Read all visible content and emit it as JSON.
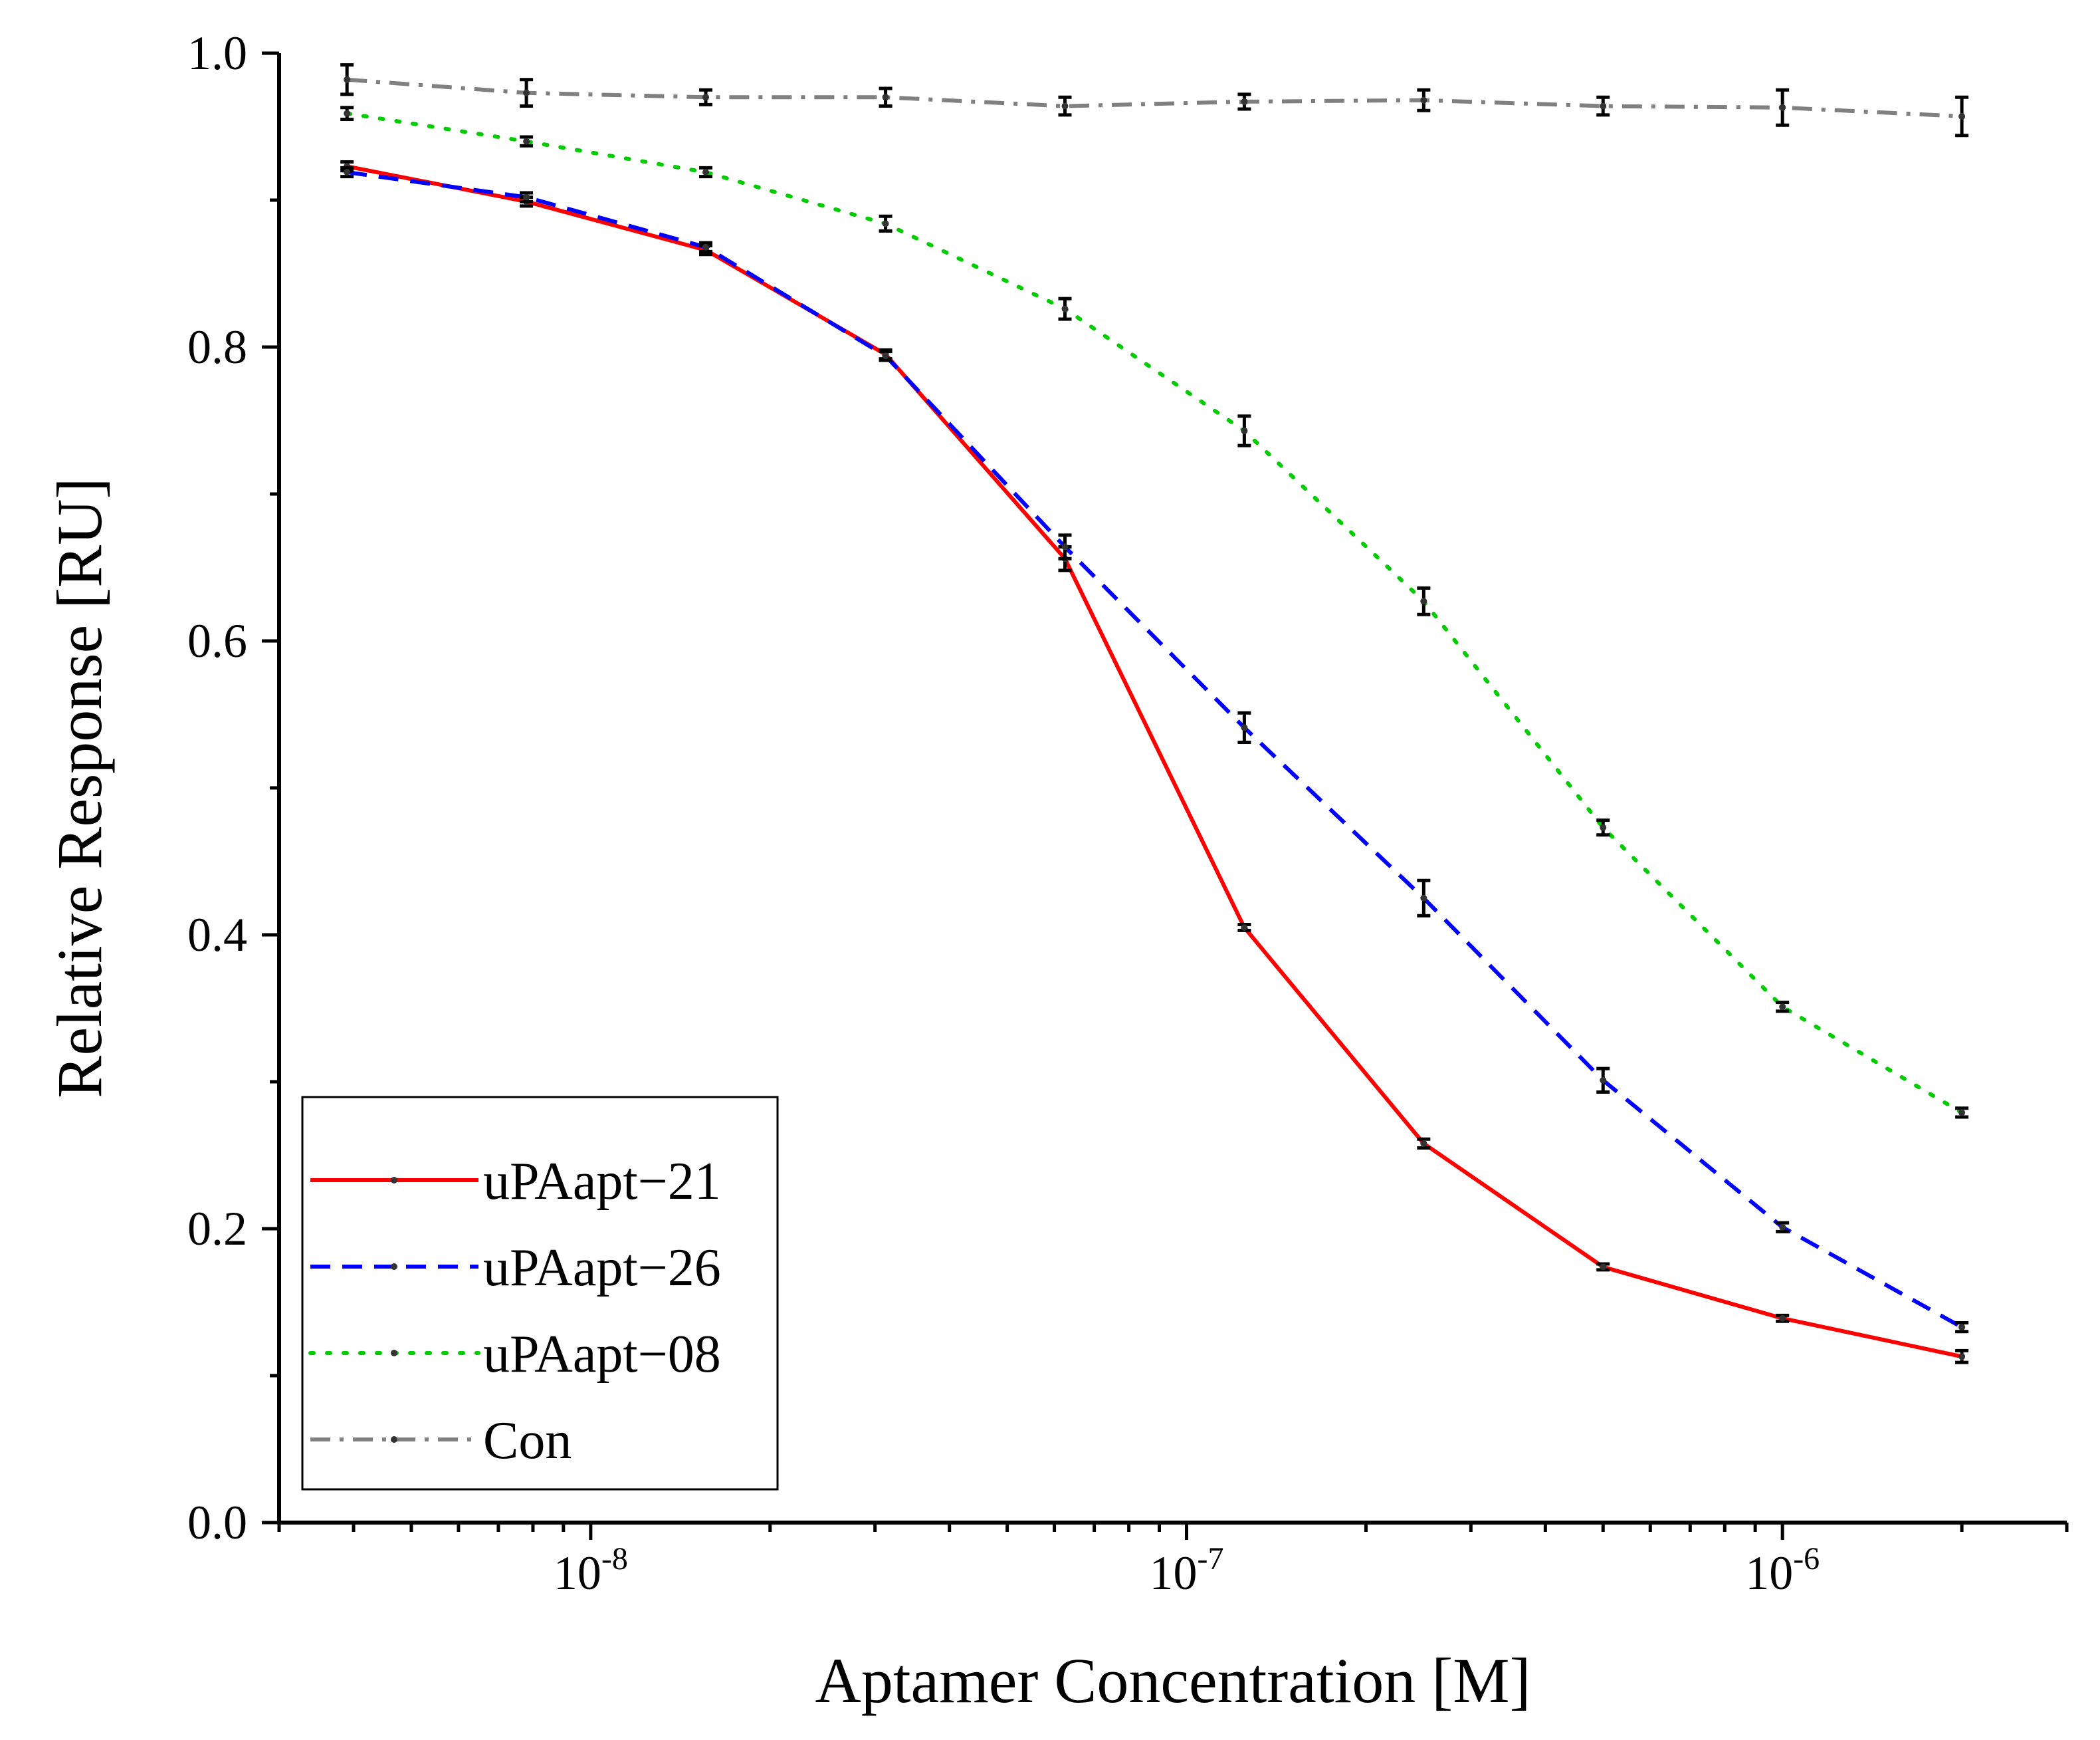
{
  "chart_data": {
    "type": "line",
    "title": "",
    "xlabel": "Aptamer Concentration [M]",
    "ylabel": "Relative Response [RU]",
    "x_scale": "log",
    "xlim": [
      3e-09,
      3e-06
    ],
    "ylim": [
      0,
      1.0
    ],
    "grid": false,
    "legend_position": "bottom-left",
    "y_ticks": [
      "0.0",
      "0.2",
      "0.4",
      "0.6",
      "0.8",
      "1.0"
    ],
    "x_ticks": [
      {
        "base": "10",
        "exp": "-8",
        "value": 1e-08
      },
      {
        "base": "10",
        "exp": "-7",
        "value": 1e-07
      },
      {
        "base": "10",
        "exp": "-6",
        "value": 1e-06
      }
    ],
    "x": [
      3.9e-09,
      7.8e-09,
      1.56e-08,
      3.125e-08,
      6.25e-08,
      1.25e-07,
      2.5e-07,
      5e-07,
      1e-06,
      2e-06
    ],
    "series": [
      {
        "name": "uPAapt−21",
        "color": "#ff0000",
        "style": "solid",
        "values": [
          0.923,
          0.899,
          0.866,
          0.795,
          0.656,
          0.405,
          0.258,
          0.174,
          0.139,
          0.113
        ],
        "errors": [
          0.003,
          0.003,
          0.003,
          0.003,
          0.008,
          0.002,
          0.003,
          0.002,
          0.002,
          0.004
        ]
      },
      {
        "name": "uPAapt−26",
        "color": "#0000ff",
        "style": "dashed",
        "values": [
          0.919,
          0.902,
          0.868,
          0.794,
          0.664,
          0.541,
          0.425,
          0.301,
          0.201,
          0.133
        ],
        "errors": [
          0.003,
          0.003,
          0.003,
          0.003,
          0.008,
          0.01,
          0.012,
          0.008,
          0.003,
          0.003
        ]
      },
      {
        "name": "uPAapt−08",
        "color": "#00cc00",
        "style": "dotted",
        "values": [
          0.959,
          0.94,
          0.919,
          0.884,
          0.826,
          0.743,
          0.627,
          0.473,
          0.351,
          0.279
        ],
        "errors": [
          0.004,
          0.003,
          0.003,
          0.005,
          0.007,
          0.01,
          0.009,
          0.005,
          0.003,
          0.003
        ]
      },
      {
        "name": "Con",
        "color": "#808080",
        "style": "dashdot",
        "values": [
          0.982,
          0.973,
          0.97,
          0.97,
          0.964,
          0.967,
          0.968,
          0.964,
          0.963,
          0.957
        ],
        "errors": [
          0.01,
          0.009,
          0.005,
          0.006,
          0.006,
          0.005,
          0.007,
          0.006,
          0.012,
          0.013
        ]
      }
    ]
  }
}
